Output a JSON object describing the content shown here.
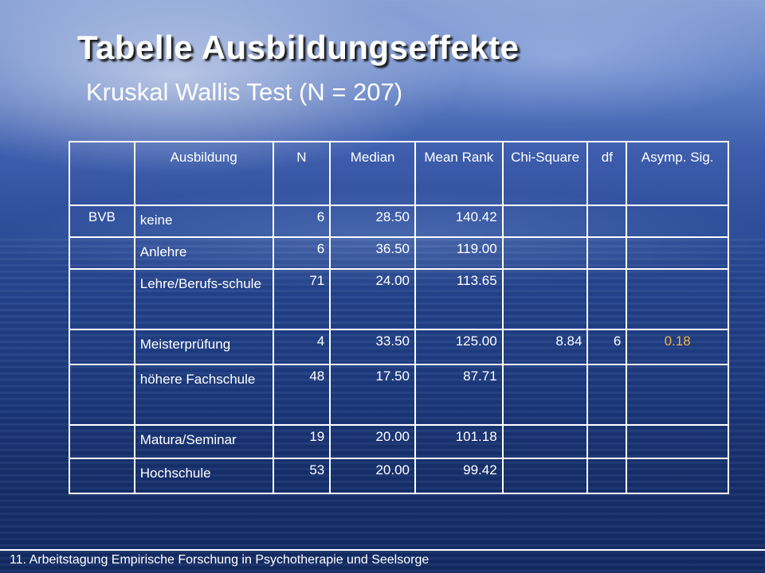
{
  "slide": {
    "title": "Tabelle Ausbildungseffekte",
    "subtitle": "Kruskal Wallis Test (N = 207)",
    "footer": "11. Arbeitstagung Empirische Forschung in Psychotherapie und Seelsorge"
  },
  "table": {
    "headers": [
      "",
      "Ausbildung",
      "N",
      "Median",
      "Mean Rank",
      "Chi-Square",
      "df",
      "Asymp. Sig."
    ],
    "rows": [
      [
        "BVB",
        "keine",
        "6",
        "28.50",
        "140.42",
        "",
        "",
        ""
      ],
      [
        "",
        "Anlehre",
        "6",
        "36.50",
        "119.00",
        "",
        "",
        ""
      ],
      [
        "",
        "Lehre/Berufs-schule",
        "71",
        "24.00",
        "113.65",
        "",
        "",
        ""
      ],
      [
        "",
        "Meisterprüfung",
        "4",
        "33.50",
        "125.00",
        "8.84",
        "6",
        "0.18"
      ],
      [
        "",
        "höhere Fachschule",
        "48",
        "17.50",
        "87.71",
        "",
        "",
        ""
      ],
      [
        "",
        "Matura/Seminar",
        "19",
        "20.00",
        "101.18",
        "",
        "",
        ""
      ],
      [
        "",
        "Hochschule",
        "53",
        "20.00",
        "99.42",
        "",
        "",
        ""
      ]
    ],
    "highlight_color": "#f4b23c"
  }
}
